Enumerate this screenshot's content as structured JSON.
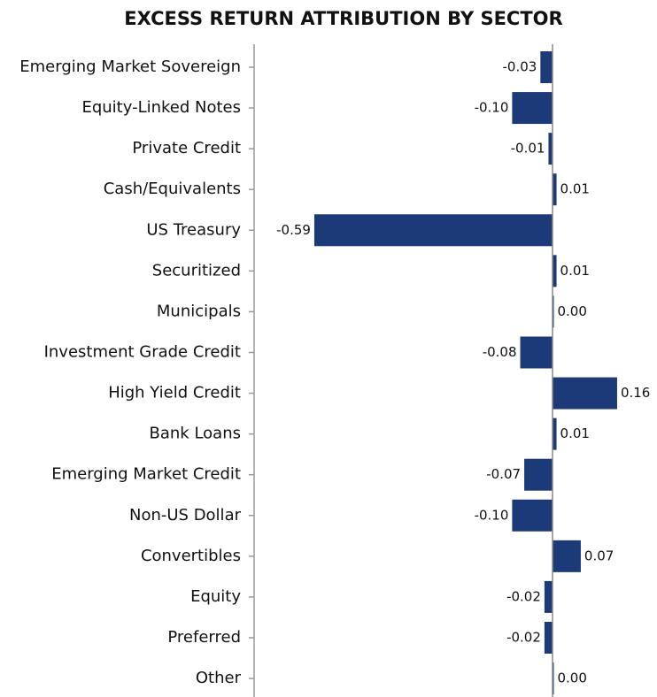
{
  "chart_data": {
    "type": "bar",
    "orientation": "horizontal",
    "title": "EXCESS RETURN ATTRIBUTION BY SECTOR",
    "categories": [
      "Emerging Market Sovereign",
      "Equity-Linked Notes",
      "Private Credit",
      "Cash/Equivalents",
      "US Treasury",
      "Securitized",
      "Municipals",
      "Investment Grade Credit",
      "High Yield Credit",
      "Bank Loans",
      "Emerging Market Credit",
      "Non-US Dollar",
      "Convertibles",
      "Equity",
      "Preferred",
      "Other"
    ],
    "values": [
      -0.03,
      -0.1,
      -0.01,
      0.01,
      -0.59,
      0.01,
      0,
      -0.08,
      0.16,
      0.01,
      -0.07,
      -0.1,
      0.07,
      -0.02,
      -0.02,
      0
    ],
    "value_labels": [
      "-0.03",
      "-0.10",
      "-0.01",
      "0.01",
      "-0.59",
      "0.01",
      "0.00",
      "-0.08",
      "0.16",
      "0.01",
      "-0.07",
      "-0.10",
      "0.07",
      "-0.02",
      "-0.02",
      "0.00"
    ],
    "color": "#1c3a78"
  }
}
